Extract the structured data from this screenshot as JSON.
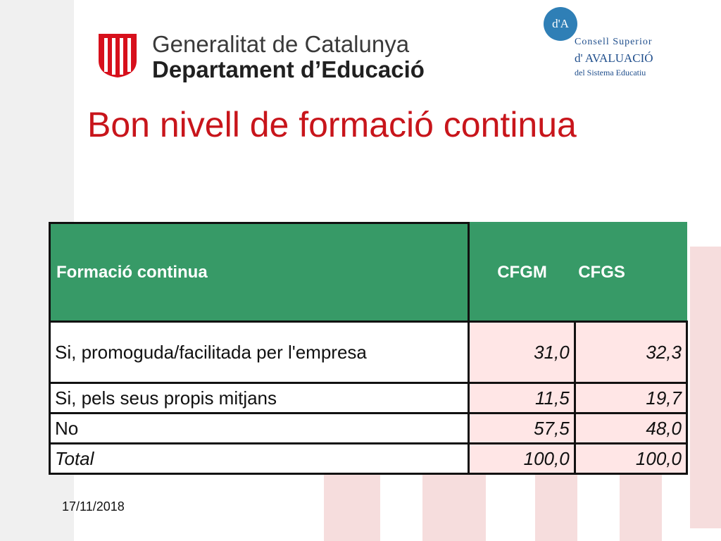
{
  "header": {
    "org_line1": "Generalitat de Catalunya",
    "org_line2": "Departament d’Educació",
    "csa_badge": "d'A",
    "csa_line1": "Consell Superior",
    "csa_line2": "d' AVALUACIÓ",
    "csa_line3": "del Sistema Educatiu"
  },
  "slide": {
    "title": "Bon nivell de formació continua",
    "date": "17/11/2018"
  },
  "table": {
    "headers": [
      "Formació continua",
      "CFGM",
      "CFGS"
    ],
    "rows": [
      {
        "label": "Si, promoguda/facilitada per l'empresa",
        "cfgm": "31,0",
        "cfgs": "32,3"
      },
      {
        "label": "Si, pels seus propis mitjans",
        "cfgm": "11,5",
        "cfgs": "19,7"
      },
      {
        "label": "No",
        "cfgm": "57,5",
        "cfgs": "48,0"
      },
      {
        "label": "Total",
        "cfgm": "100,0",
        "cfgs": "100,0"
      }
    ]
  },
  "colors": {
    "title": "#c8151b",
    "header_bg": "#379a67",
    "value_bg": "#ffe6e6",
    "emblem_red": "#d7101c",
    "emblem_yellow": "#ffffff"
  }
}
